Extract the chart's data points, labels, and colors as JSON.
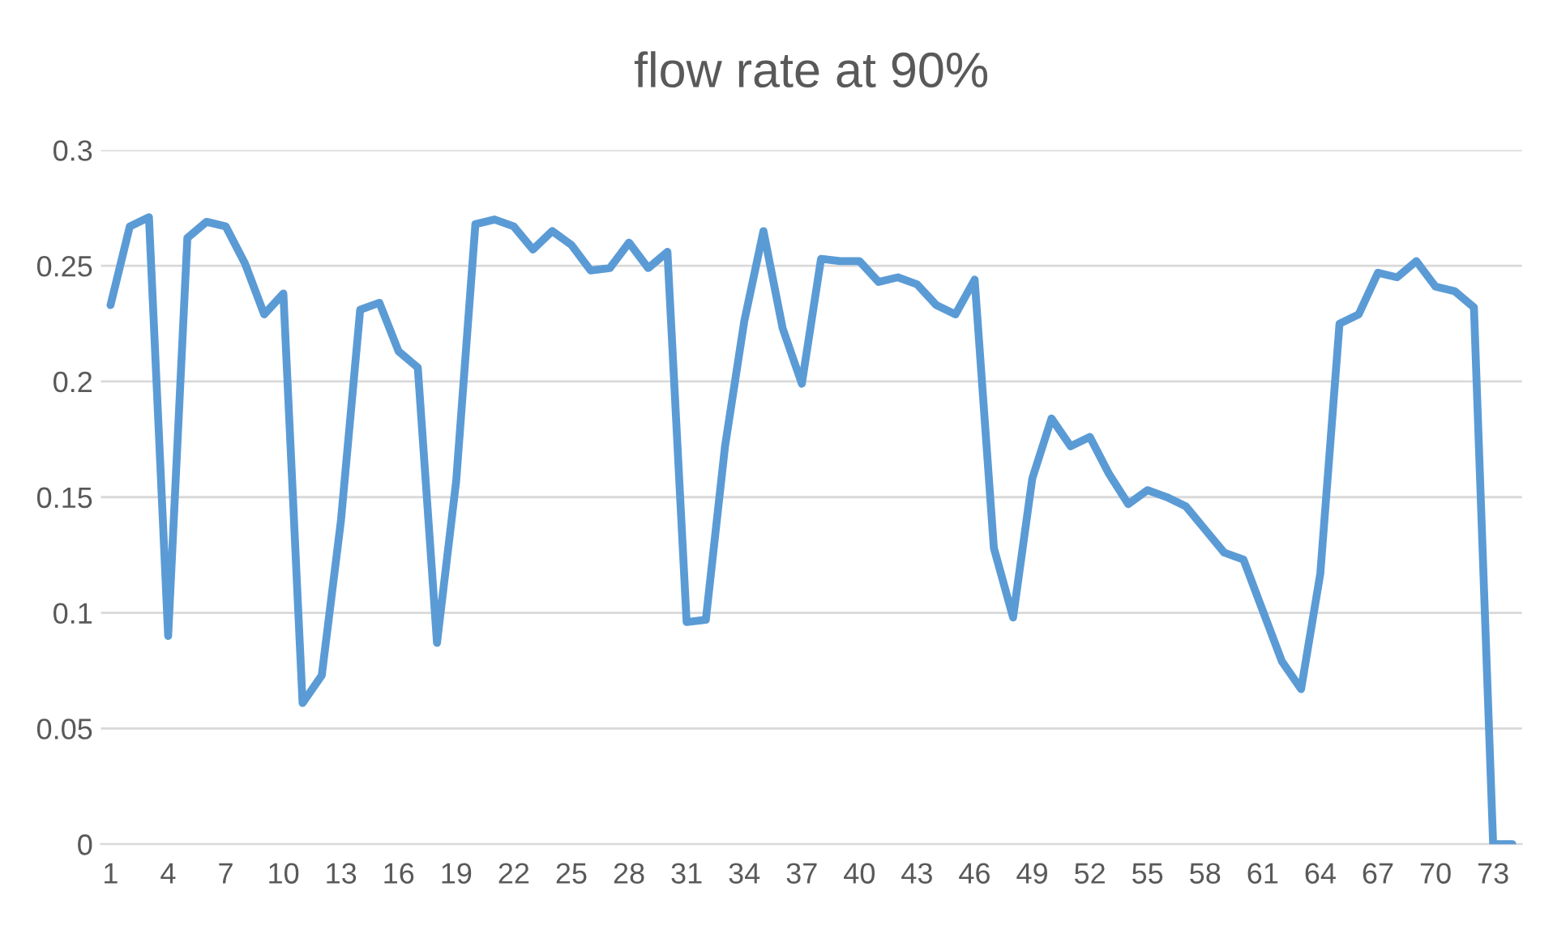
{
  "chart_data": {
    "type": "line",
    "title": "flow rate at 90%",
    "categories": [
      "1",
      null,
      null,
      "4",
      null,
      null,
      "7",
      null,
      null,
      "10",
      null,
      null,
      "13",
      null,
      null,
      "16",
      null,
      null,
      "19",
      null,
      null,
      "22",
      null,
      null,
      "25",
      null,
      null,
      "28",
      null,
      null,
      "31",
      null,
      null,
      "34",
      null,
      null,
      "37",
      null,
      null,
      "40",
      null,
      null,
      "43",
      null,
      null,
      "46",
      null,
      null,
      "49",
      null,
      null,
      "52",
      null,
      null,
      "55",
      null,
      null,
      "58",
      null,
      null,
      "61",
      null,
      null,
      "64",
      null,
      null,
      "67",
      null,
      null,
      "70",
      null,
      null,
      "73",
      null
    ],
    "series": [
      {
        "color": "#5b9bd5",
        "values": [
          0.233,
          0.267,
          0.271,
          0.09,
          0.262,
          0.269,
          0.267,
          0.251,
          0.229,
          0.238,
          0.061,
          0.073,
          0.14,
          0.231,
          0.234,
          0.213,
          0.206,
          0.087,
          0.157,
          0.268,
          0.27,
          0.267,
          0.257,
          0.265,
          0.259,
          0.248,
          0.249,
          0.26,
          0.249,
          0.256,
          0.096,
          0.097,
          0.172,
          0.226,
          0.265,
          0.223,
          0.199,
          0.253,
          0.252,
          0.252,
          0.243,
          0.245,
          0.242,
          0.233,
          0.229,
          0.244,
          0.128,
          0.098,
          0.158,
          0.184,
          0.172,
          0.176,
          0.16,
          0.147,
          0.153,
          0.15,
          0.146,
          0.136,
          0.126,
          0.123,
          0.101,
          0.079,
          0.067,
          0.117,
          0.225,
          0.229,
          0.247,
          0.245,
          0.252,
          0.241,
          0.239,
          0.232,
          0.0,
          0.0
        ]
      }
    ],
    "ylim": [
      0,
      0.3
    ],
    "yticks": [
      {
        "value": 0,
        "label": "0"
      },
      0.05,
      0.1,
      0.15,
      0.2,
      0.25,
      0.3
    ],
    "grid": "y",
    "legend": false,
    "marker": "none",
    "line_style": "solid"
  }
}
